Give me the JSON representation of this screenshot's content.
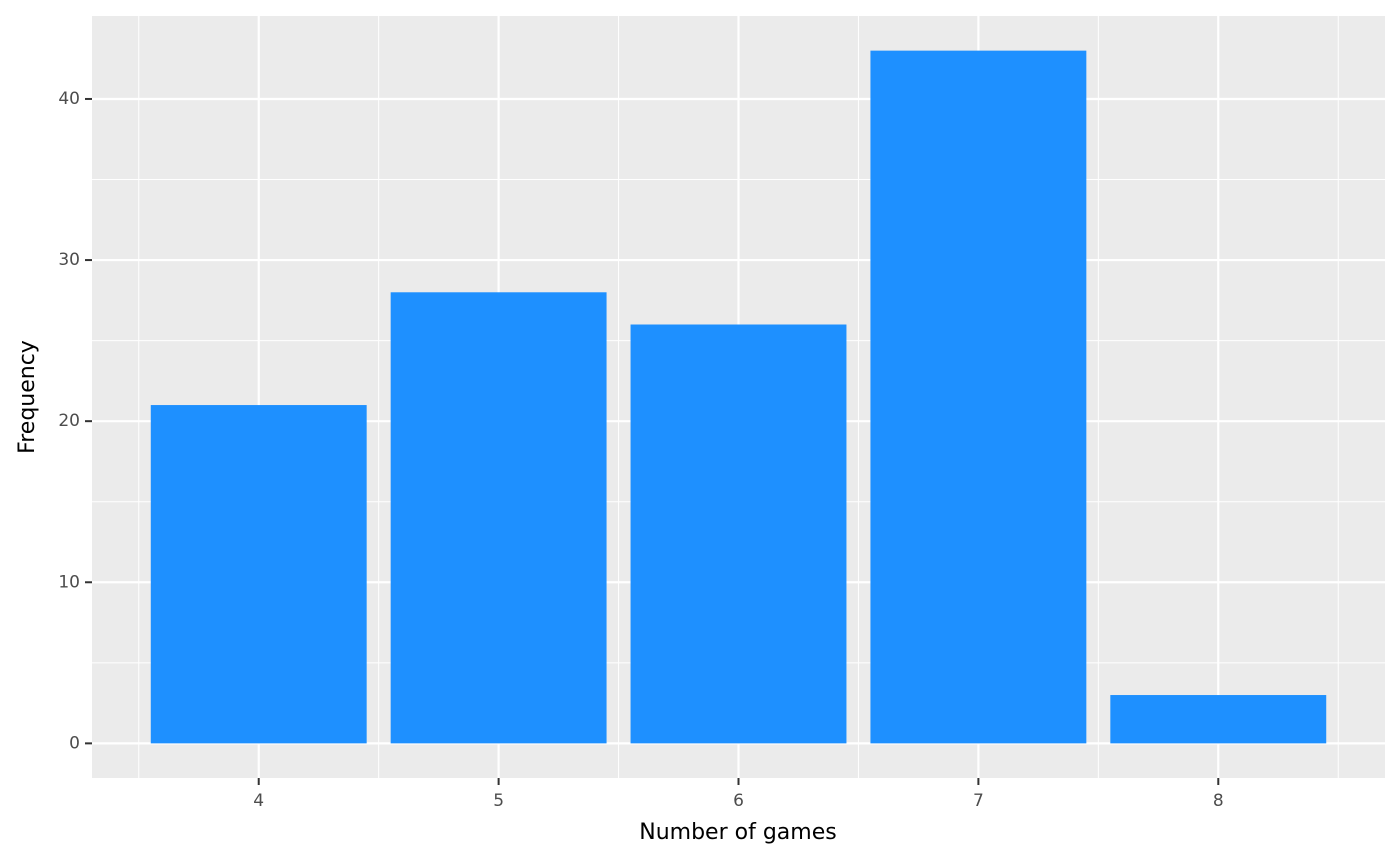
{
  "chart_data": {
    "type": "bar",
    "x_label": "Number of games",
    "y_label": "Frequency",
    "x": [
      4,
      5,
      6,
      7,
      8
    ],
    "values": [
      21,
      28,
      26,
      43,
      3
    ],
    "color": "#1e90ff",
    "xlim": [
      3.305,
      8.695
    ],
    "xticks": [
      4,
      5,
      6,
      7,
      8
    ],
    "ylim": [
      -2.15,
      45.15
    ],
    "yticks": [
      0,
      10,
      20,
      30,
      40
    ],
    "grid": true
  }
}
